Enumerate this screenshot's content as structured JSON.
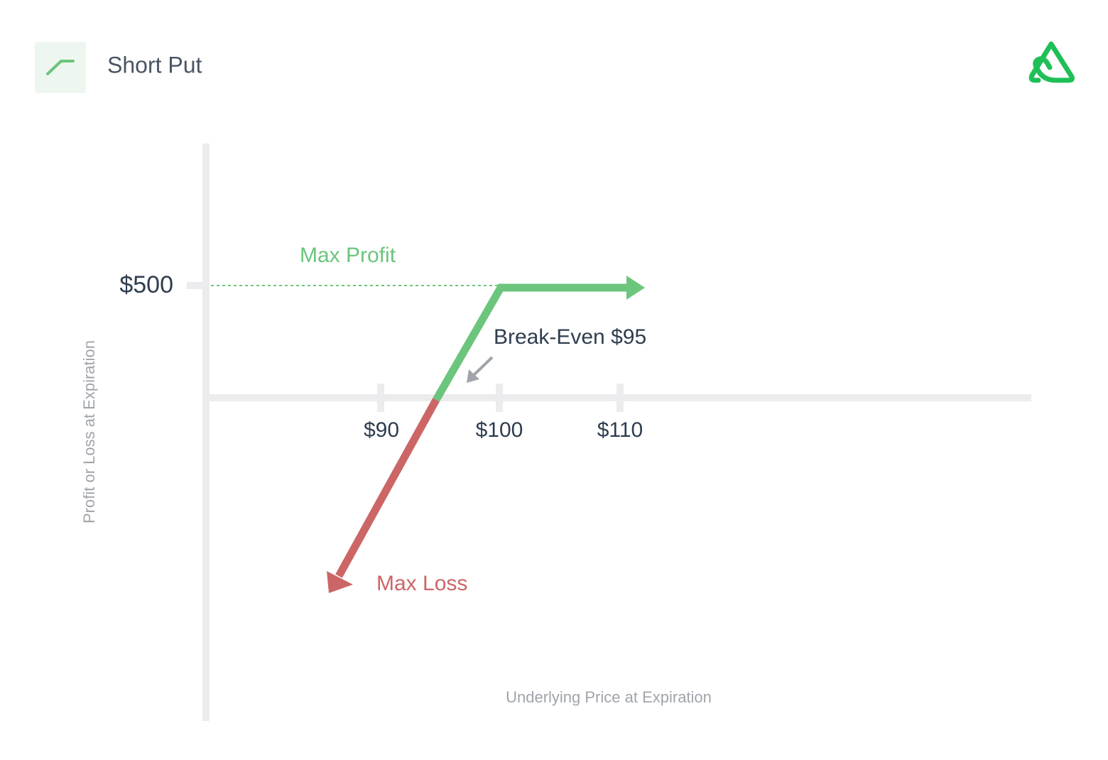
{
  "header": {
    "title": "Short Put"
  },
  "diagram": {
    "y_axis_label": "Profit or Loss at Expiration",
    "x_axis_label": "Underlying Price at Expiration",
    "y_tick": "$500",
    "x_ticks": [
      "$90",
      "$100",
      "$110"
    ],
    "annotations": {
      "max_profit": "Max Profit",
      "break_even": "Break-Even $95",
      "max_loss": "Max Loss"
    }
  }
}
